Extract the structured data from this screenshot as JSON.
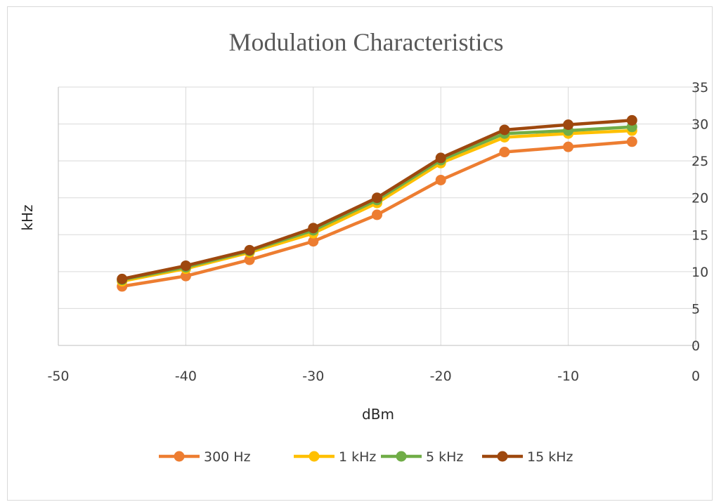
{
  "chart_data": {
    "type": "line",
    "title": "Modulation  Characteristics",
    "xlabel": "dBm",
    "ylabel": "kHz",
    "x": [
      -45,
      -40,
      -35,
      -30,
      -25,
      -20,
      -15,
      -10,
      -5
    ],
    "xlim": [
      -50,
      0
    ],
    "ylim": [
      0,
      35
    ],
    "x_ticks": [
      -50,
      -40,
      -30,
      -20,
      -10,
      0
    ],
    "y_ticks": [
      0,
      5,
      10,
      15,
      20,
      25,
      30,
      35
    ],
    "y_axis_side": "right",
    "grid": true,
    "legend_position": "bottom",
    "series": [
      {
        "name": "300 Hz",
        "color": "#ED7D31",
        "values": [
          8.0,
          9.4,
          11.6,
          14.1,
          17.7,
          22.4,
          26.2,
          26.9,
          27.6
        ]
      },
      {
        "name": "1 kHz",
        "color": "#FFC000",
        "values": [
          8.7,
          10.4,
          12.6,
          15.2,
          19.3,
          24.7,
          28.2,
          28.7,
          29.1
        ]
      },
      {
        "name": "5 kHz",
        "color": "#70AD47",
        "values": [
          8.9,
          10.6,
          12.8,
          15.6,
          19.7,
          25.1,
          28.7,
          29.1,
          29.6
        ]
      },
      {
        "name": "15 kHz",
        "color": "#9E480E",
        "values": [
          9.0,
          10.8,
          12.9,
          15.9,
          20.0,
          25.4,
          29.2,
          29.9,
          30.5
        ]
      }
    ]
  }
}
